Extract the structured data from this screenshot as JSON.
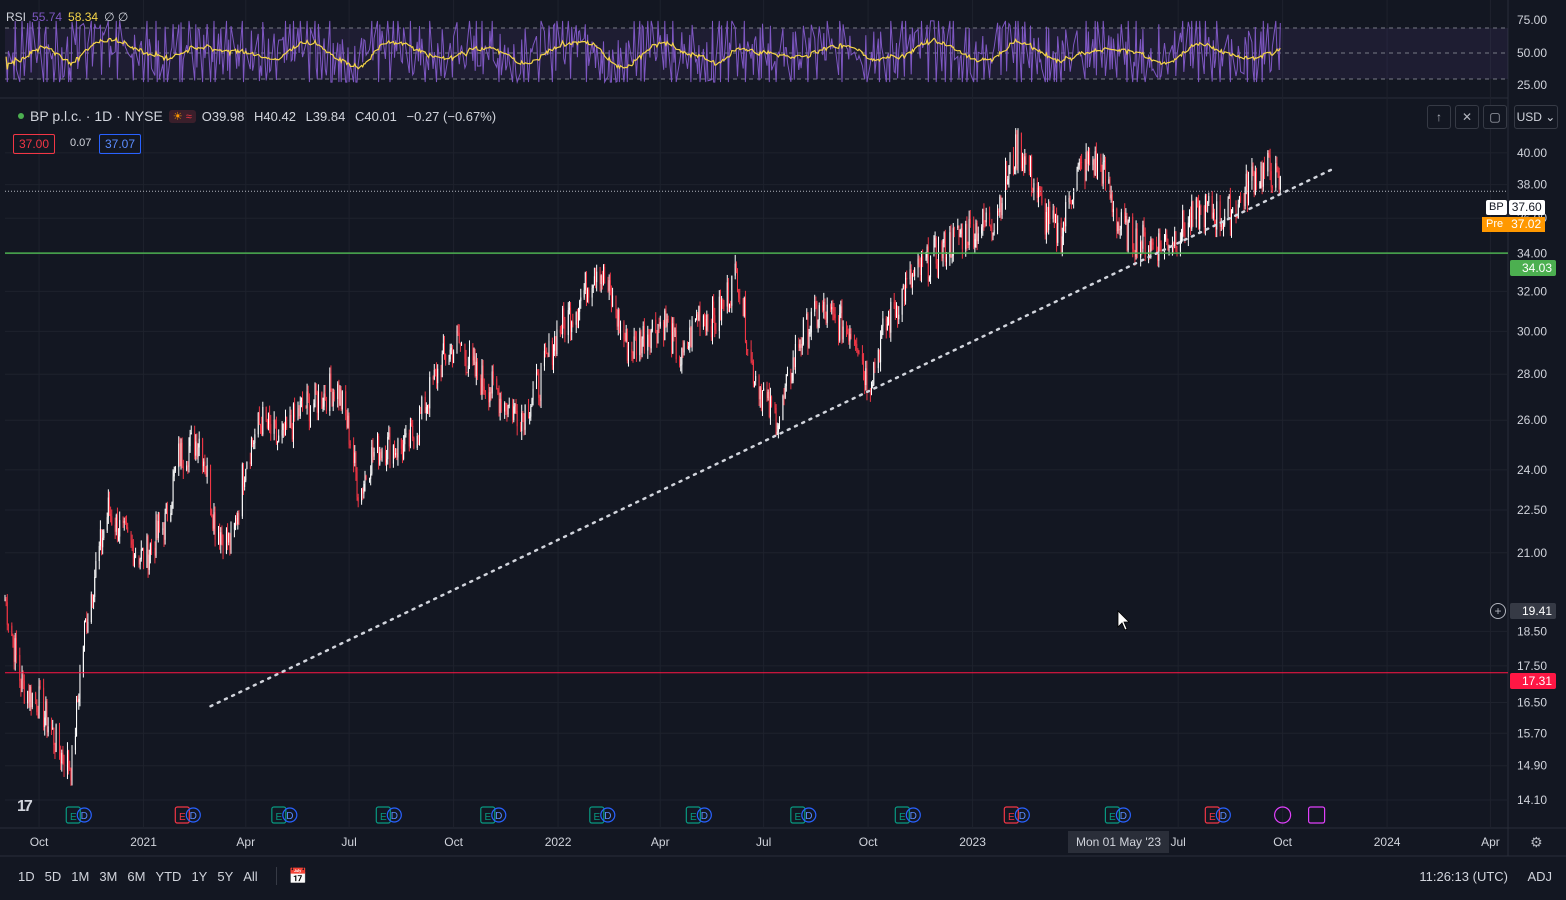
{
  "rsi": {
    "label": "RSI",
    "value1": "55.74",
    "value2": "58.34",
    "extra": "∅ ∅",
    "color_rsi": "#7e57c2",
    "color_ma": "#f5d547",
    "scale": [
      "75.00",
      "50.00",
      "25.00"
    ]
  },
  "legend": {
    "symbol": "BP p.l.c. · 1D · NYSE",
    "open": "O39.98",
    "high": "H40.42",
    "low": "L39.84",
    "close": "C40.01",
    "change": "−0.27 (−0.67%)",
    "bid": "37.00",
    "spread": "0.07",
    "ask": "37.07"
  },
  "toolbar": {
    "currency": "USD"
  },
  "price_tags": {
    "bp_label": "BP",
    "bp_value": "37.60",
    "pre_label": "Pre",
    "pre_value": "37.02",
    "green_level": "34.03",
    "cursor_level": "19.41",
    "red_level": "17.31"
  },
  "bottom": {
    "ranges": [
      "1D",
      "5D",
      "1M",
      "3M",
      "6M",
      "YTD",
      "1Y",
      "5Y",
      "All"
    ],
    "clock": "11:26:13 (UTC)",
    "adj": "ADJ"
  },
  "crosshair_date": "Mon 01 May '23",
  "colors": {
    "background": "#131722",
    "up": "#ffffff",
    "down": "#f23645",
    "green_line": "#4caf50",
    "red_line": "#ff1744",
    "trendline": "#d1d4dc",
    "pre_tag": "#ff9800"
  },
  "chart_data": {
    "type": "candlestick",
    "y_scale": "log",
    "ylim": [
      14.1,
      41.5
    ],
    "y_ticks": [
      "40.00",
      "38.00",
      "36.00",
      "34.00",
      "32.00",
      "30.00",
      "28.00",
      "26.00",
      "24.00",
      "22.50",
      "21.00",
      "18.50",
      "17.50",
      "16.50",
      "15.70",
      "14.90",
      "14.10"
    ],
    "x_ticks": [
      "Oct",
      "2021",
      "Apr",
      "Jul",
      "Oct",
      "2022",
      "Apr",
      "Jul",
      "Oct",
      "2023",
      "Jul",
      "Oct",
      "2024",
      "Apr"
    ],
    "x_tick_dates": [
      "2020-10",
      "2021-01",
      "2021-04",
      "2021-07",
      "2021-10",
      "2022-01",
      "2022-04",
      "2022-07",
      "2022-10",
      "2023-01",
      "2023-07",
      "2023-10",
      "2024-01",
      "2024-04"
    ],
    "close_series": {
      "dates": [
        "2020-09-01",
        "2020-09-15",
        "2020-10-01",
        "2020-10-20",
        "2020-10-30",
        "2020-11-10",
        "2020-11-20",
        "2020-12-01",
        "2020-12-15",
        "2021-01-01",
        "2021-01-20",
        "2021-02-01",
        "2021-02-20",
        "2021-03-05",
        "2021-03-20",
        "2021-04-01",
        "2021-04-15",
        "2021-05-01",
        "2021-05-20",
        "2021-06-01",
        "2021-06-20",
        "2021-07-01",
        "2021-07-10",
        "2021-07-20",
        "2021-08-01",
        "2021-08-20",
        "2021-09-01",
        "2021-09-20",
        "2021-10-05",
        "2021-10-20",
        "2021-11-01",
        "2021-11-20",
        "2021-12-01",
        "2021-12-15",
        "2022-01-01",
        "2022-01-20",
        "2022-02-05",
        "2022-02-20",
        "2022-03-05",
        "2022-03-20",
        "2022-04-05",
        "2022-04-20",
        "2022-05-05",
        "2022-05-20",
        "2022-06-08",
        "2022-06-20",
        "2022-07-05",
        "2022-07-15",
        "2022-08-01",
        "2022-08-20",
        "2022-09-01",
        "2022-09-20",
        "2022-10-01",
        "2022-10-15",
        "2022-11-01",
        "2022-11-15",
        "2022-12-01",
        "2022-12-20",
        "2023-01-05",
        "2023-01-20",
        "2023-02-10",
        "2023-02-20",
        "2023-03-05",
        "2023-03-20",
        "2023-04-01",
        "2023-04-15",
        "2023-04-25",
        "2023-05-10",
        "2023-05-25",
        "2023-06-10",
        "2023-06-25",
        "2023-07-10",
        "2023-07-25",
        "2023-08-10",
        "2023-08-25",
        "2023-09-05",
        "2023-09-20",
        "2023-10-01"
      ],
      "values": [
        19.5,
        17.0,
        16.5,
        15.2,
        14.9,
        18.5,
        20.5,
        22.5,
        21.5,
        20.8,
        22.0,
        24.5,
        25.3,
        22.0,
        21.2,
        24.5,
        26.0,
        25.0,
        26.5,
        26.8,
        27.5,
        25.5,
        23.0,
        24.5,
        25.0,
        24.8,
        26.0,
        28.5,
        29.5,
        28.0,
        27.5,
        26.5,
        26.3,
        27.5,
        30.0,
        31.5,
        33.5,
        31.0,
        29.0,
        30.0,
        30.5,
        28.5,
        31.0,
        30.5,
        33.0,
        28.5,
        26.5,
        26.0,
        29.5,
        31.0,
        30.5,
        30.0,
        27.5,
        30.0,
        32.0,
        33.0,
        34.0,
        35.0,
        35.5,
        36.0,
        40.5,
        39.0,
        36.0,
        35.0,
        38.5,
        39.5,
        39.0,
        35.5,
        34.8,
        34.5,
        34.8,
        35.8,
        36.5,
        36.0,
        37.0,
        38.5,
        39.0,
        37.6
      ]
    },
    "levels": [
      {
        "price": 34.03,
        "color": "green"
      },
      {
        "price": 17.31,
        "color": "red"
      }
    ],
    "trendline": {
      "from": [
        "2021-03-01",
        16.4
      ],
      "to": [
        "2023-11-15",
        39.0
      ]
    }
  }
}
